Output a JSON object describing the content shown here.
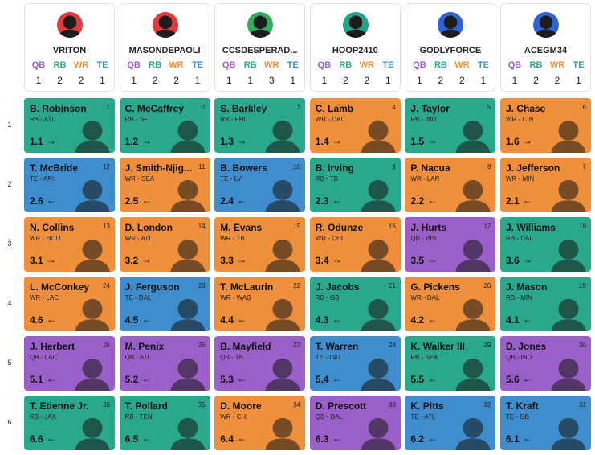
{
  "position_labels": [
    "QB",
    "RB",
    "WR",
    "TE"
  ],
  "position_colors": {
    "QB": "#9b5fc9",
    "RB": "#2aa88c",
    "WR": "#ef8f3c",
    "TE": "#3f8dcc"
  },
  "teams": [
    {
      "name": "VRITON",
      "avatar_color": "#e03a3e",
      "counts": [
        1,
        2,
        2,
        1
      ]
    },
    {
      "name": "MASONDEPAOLI",
      "avatar_color": "#e03a3e",
      "counts": [
        1,
        2,
        2,
        1
      ]
    },
    {
      "name": "CCSDESPERAD...",
      "avatar_color": "#2fae5e",
      "counts": [
        1,
        1,
        3,
        1
      ]
    },
    {
      "name": "HOOP2410",
      "avatar_color": "#22a38c",
      "counts": [
        1,
        2,
        2,
        1
      ]
    },
    {
      "name": "GODLYFORCE",
      "avatar_color": "#2f63d8",
      "counts": [
        1,
        2,
        2,
        1
      ]
    },
    {
      "name": "ACEGM34",
      "avatar_color": "#2f63d8",
      "counts": [
        1,
        2,
        2,
        1
      ]
    }
  ],
  "rounds": [
    {
      "round": 1,
      "picks": [
        {
          "name": "B. Robinson",
          "pos_team": "RB - ATL",
          "number": 1,
          "label": "1.1",
          "arrow": "→"
        },
        {
          "name": "C. McCaffrey",
          "pos_team": "RB - SF",
          "number": 2,
          "label": "1.2",
          "arrow": "→"
        },
        {
          "name": "S. Barkley",
          "pos_team": "RB - PHI",
          "number": 3,
          "label": "1.3",
          "arrow": "→"
        },
        {
          "name": "C. Lamb",
          "pos_team": "WR - DAL",
          "number": 4,
          "label": "1.4",
          "arrow": "→"
        },
        {
          "name": "J. Taylor",
          "pos_team": "RB - IND",
          "number": 5,
          "label": "1.5",
          "arrow": "→"
        },
        {
          "name": "J. Chase",
          "pos_team": "WR - CIN",
          "number": 6,
          "label": "1.6",
          "arrow": "→"
        }
      ]
    },
    {
      "round": 2,
      "picks": [
        {
          "name": "T. McBride",
          "pos_team": "TE - ARI",
          "number": 12,
          "label": "2.6",
          "arrow": "←"
        },
        {
          "name": "J. Smith-Njig...",
          "pos_team": "WR - SEA",
          "number": 11,
          "label": "2.5",
          "arrow": "←"
        },
        {
          "name": "B. Bowers",
          "pos_team": "TE - LV",
          "number": 10,
          "label": "2.4",
          "arrow": "←"
        },
        {
          "name": "B. Irving",
          "pos_team": "RB - TB",
          "number": 9,
          "label": "2.3",
          "arrow": "←"
        },
        {
          "name": "P. Nacua",
          "pos_team": "WR - LAR",
          "number": 8,
          "label": "2.2",
          "arrow": "←"
        },
        {
          "name": "J. Jefferson",
          "pos_team": "WR - MIN",
          "number": 7,
          "label": "2.1",
          "arrow": "←"
        }
      ]
    },
    {
      "round": 3,
      "picks": [
        {
          "name": "N. Collins",
          "pos_team": "WR - HOU",
          "number": 13,
          "label": "3.1",
          "arrow": "→"
        },
        {
          "name": "D. London",
          "pos_team": "WR - ATL",
          "number": 14,
          "label": "3.2",
          "arrow": "→"
        },
        {
          "name": "M. Evans",
          "pos_team": "WR - TB",
          "number": 15,
          "label": "3.3",
          "arrow": "→"
        },
        {
          "name": "R. Odunze",
          "pos_team": "WR - CHI",
          "number": 16,
          "label": "3.4",
          "arrow": "→"
        },
        {
          "name": "J. Hurts",
          "pos_team": "QB - PHI",
          "number": 17,
          "label": "3.5",
          "arrow": "→"
        },
        {
          "name": "J. Williams",
          "pos_team": "RB - DAL",
          "number": 18,
          "label": "3.6",
          "arrow": "→"
        }
      ]
    },
    {
      "round": 4,
      "picks": [
        {
          "name": "L. McConkey",
          "pos_team": "WR - LAC",
          "number": 24,
          "label": "4.6",
          "arrow": "←"
        },
        {
          "name": "J. Ferguson",
          "pos_team": "TE - DAL",
          "number": 23,
          "label": "4.5",
          "arrow": "←"
        },
        {
          "name": "T. McLaurin",
          "pos_team": "WR - WAS",
          "number": 22,
          "label": "4.4",
          "arrow": "←"
        },
        {
          "name": "J. Jacobs",
          "pos_team": "RB - GB",
          "number": 21,
          "label": "4.3",
          "arrow": "←"
        },
        {
          "name": "G. Pickens",
          "pos_team": "WR - DAL",
          "number": 20,
          "label": "4.2",
          "arrow": "←"
        },
        {
          "name": "J. Mason",
          "pos_team": "RB - MIN",
          "number": 19,
          "label": "4.1",
          "arrow": "←"
        }
      ]
    },
    {
      "round": 5,
      "picks": [
        {
          "name": "J. Herbert",
          "pos_team": "QB - LAC",
          "number": 25,
          "label": "5.1",
          "arrow": "←"
        },
        {
          "name": "M. Penix",
          "pos_team": "QB - ATL",
          "number": 26,
          "label": "5.2",
          "arrow": "←"
        },
        {
          "name": "B. Mayfield",
          "pos_team": "QB - TB",
          "number": 27,
          "label": "5.3",
          "arrow": "←"
        },
        {
          "name": "T. Warren",
          "pos_team": "TE - IND",
          "number": 28,
          "label": "5.4",
          "arrow": "←"
        },
        {
          "name": "K. Walker III",
          "pos_team": "RB - SEA",
          "number": 29,
          "label": "5.5",
          "arrow": "←"
        },
        {
          "name": "D. Jones",
          "pos_team": "QB - IND",
          "number": 30,
          "label": "5.6",
          "arrow": "←"
        }
      ]
    },
    {
      "round": 6,
      "picks": [
        {
          "name": "T. Etienne Jr.",
          "pos_team": "RB - JAX",
          "number": 36,
          "label": "6.6",
          "arrow": "←"
        },
        {
          "name": "T. Pollard",
          "pos_team": "RB - TEN",
          "number": 35,
          "label": "6.5",
          "arrow": "←"
        },
        {
          "name": "D. Moore",
          "pos_team": "WR - CHI",
          "number": 34,
          "label": "6.4",
          "arrow": "←"
        },
        {
          "name": "D. Prescott",
          "pos_team": "QB - DAL",
          "number": 33,
          "label": "6.3",
          "arrow": "←"
        },
        {
          "name": "K. Pitts",
          "pos_team": "TE - ATL",
          "number": 32,
          "label": "6.2",
          "arrow": "←"
        },
        {
          "name": "T. Kraft",
          "pos_team": "TE - GB",
          "number": 31,
          "label": "6.1",
          "arrow": "←"
        }
      ]
    }
  ]
}
